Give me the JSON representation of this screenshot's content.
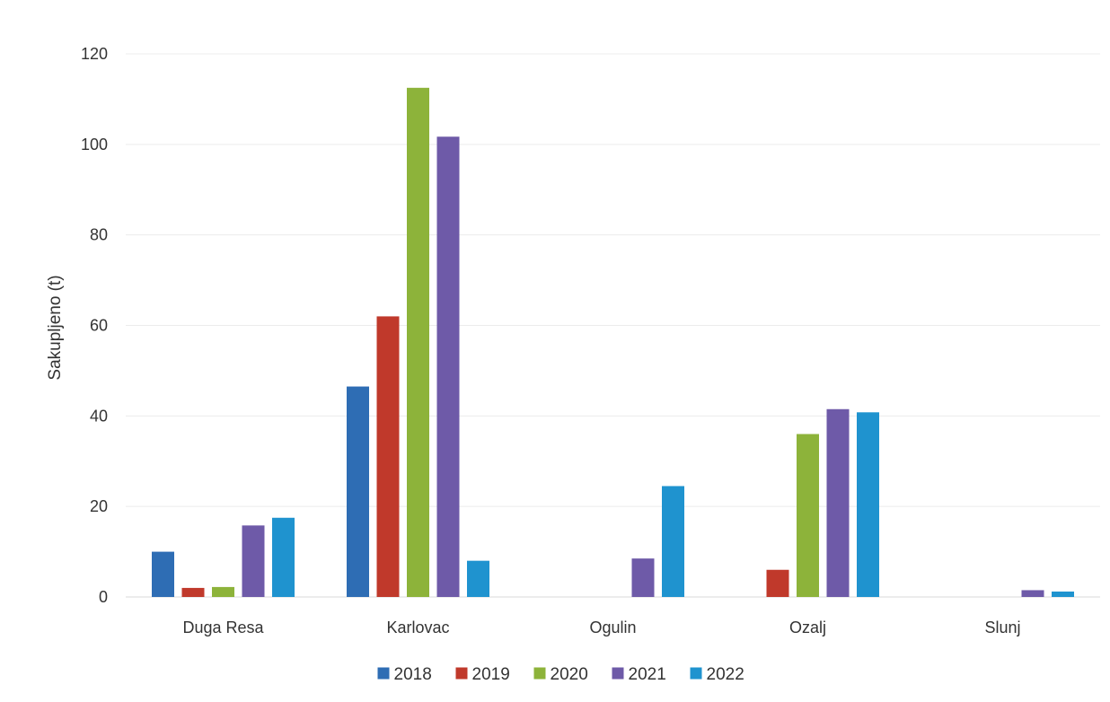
{
  "chart_data": {
    "type": "bar",
    "title": "",
    "xlabel": "",
    "ylabel": "Sakupljeno (t)",
    "ylim": [
      0,
      120
    ],
    "yticks": [
      0,
      20,
      40,
      60,
      80,
      100,
      120
    ],
    "categories": [
      "Duga Resa",
      "Karlovac",
      "Ogulin",
      "Ozalj",
      "Slunj"
    ],
    "series": [
      {
        "name": "2018",
        "color": "#2E6DB4",
        "values": [
          10,
          46.5,
          0,
          0,
          0
        ]
      },
      {
        "name": "2019",
        "color": "#C0392B",
        "values": [
          2,
          62,
          0,
          6,
          0
        ]
      },
      {
        "name": "2020",
        "color": "#8DB33A",
        "values": [
          2.2,
          112.5,
          0,
          36,
          0
        ]
      },
      {
        "name": "2021",
        "color": "#6E5AA8",
        "values": [
          15.8,
          101.7,
          8.5,
          41.5,
          1.5
        ]
      },
      {
        "name": "2022",
        "color": "#1F93CF",
        "values": [
          17.5,
          8,
          24.5,
          40.8,
          1.2
        ]
      }
    ],
    "grid": true,
    "legend": "bottom"
  }
}
